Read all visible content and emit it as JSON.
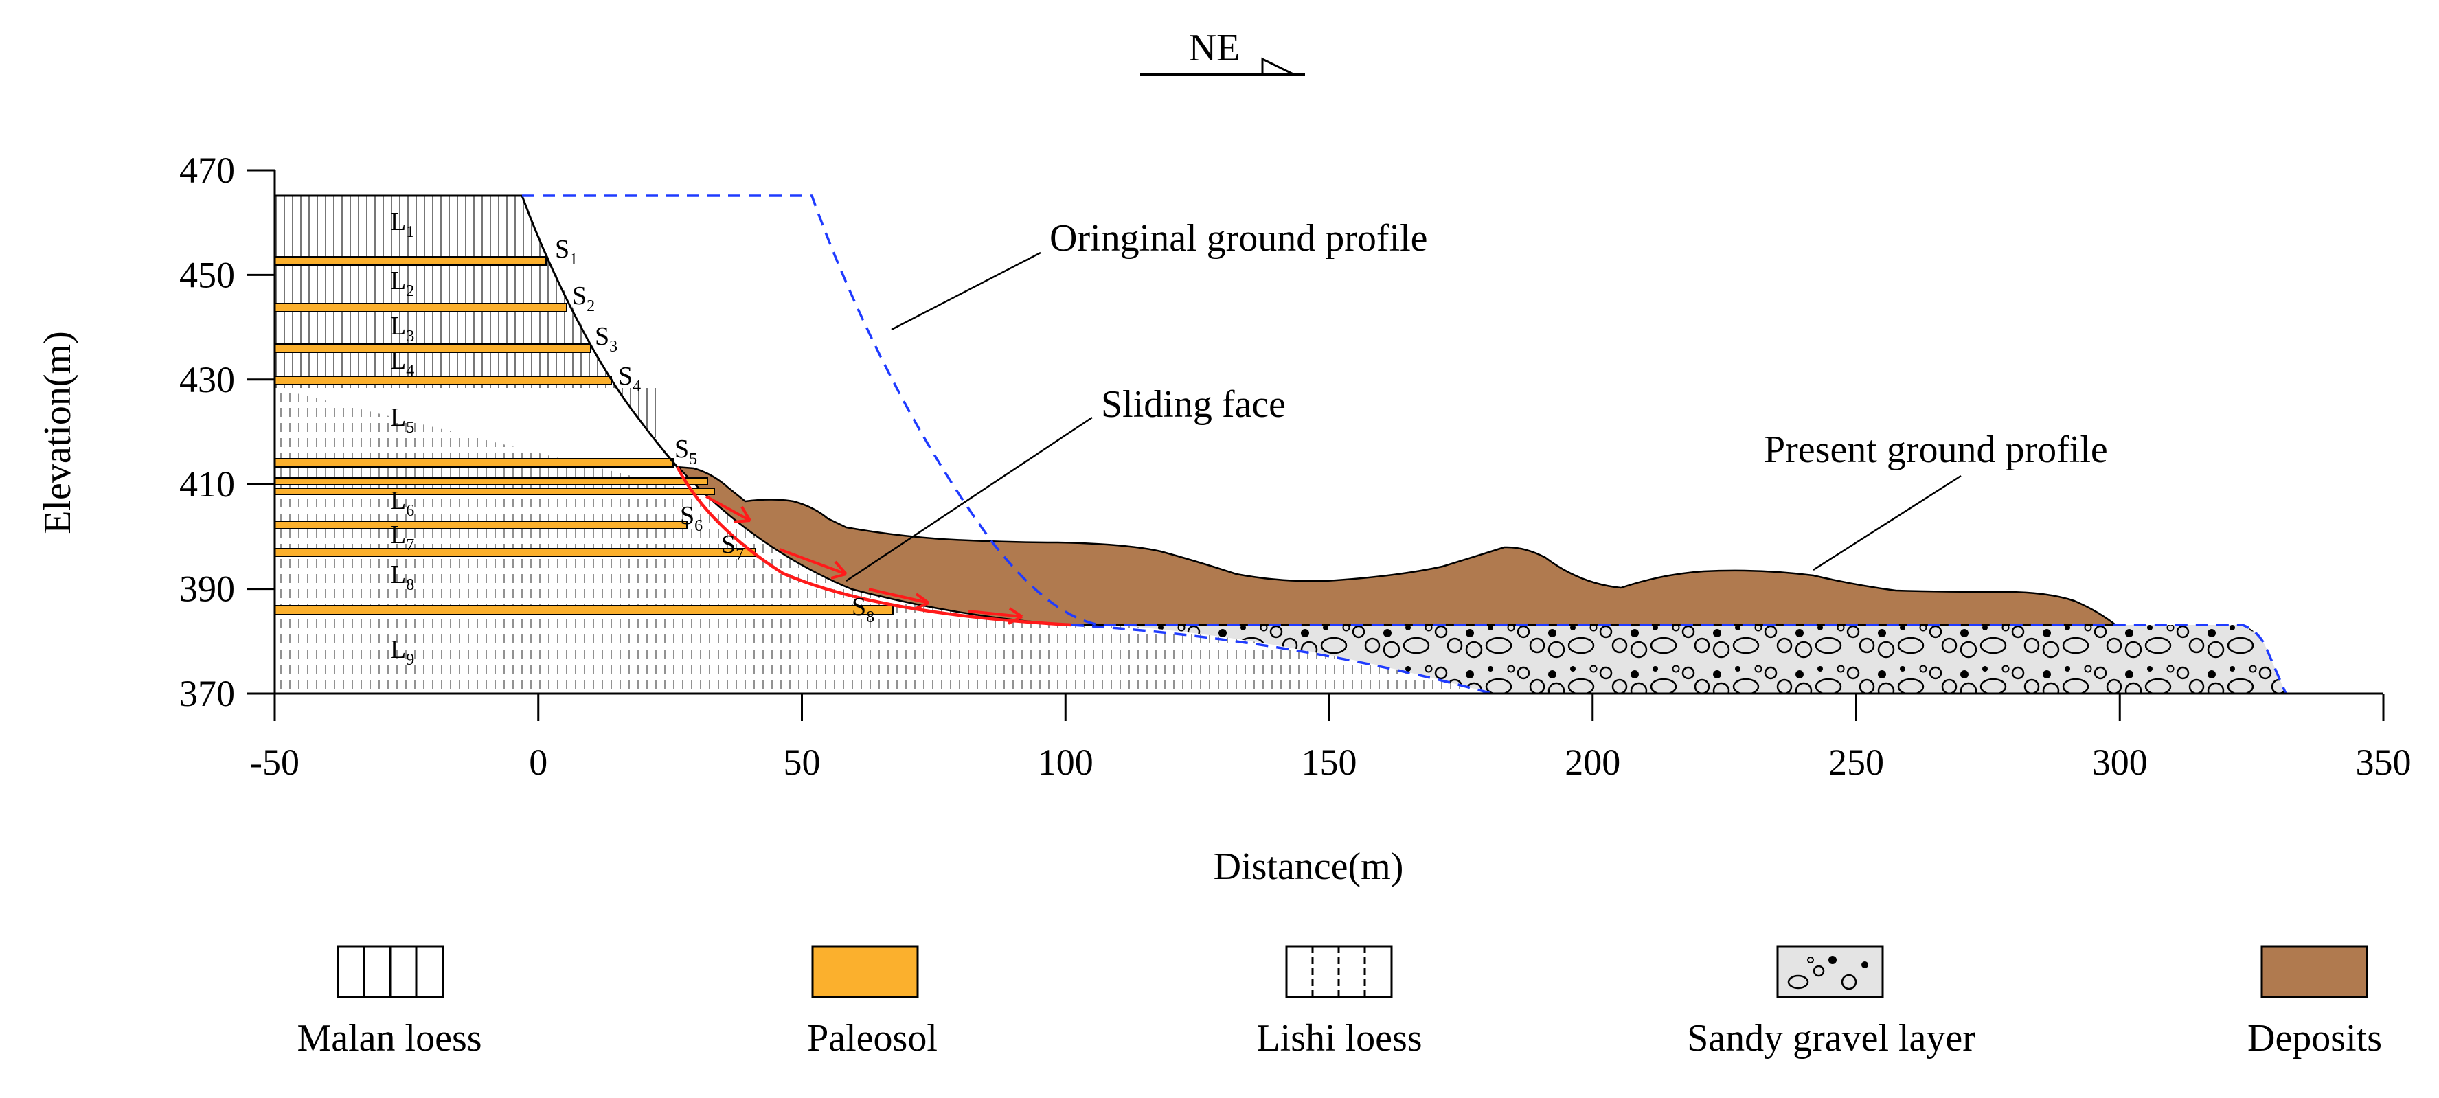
{
  "orientation": {
    "label": "NE"
  },
  "axes": {
    "xlabel": "Distance(m)",
    "ylabel": "Elevation(m)",
    "xticks": [
      "-50",
      "0",
      "50",
      "100",
      "150",
      "200",
      "250",
      "300",
      "350"
    ],
    "yticks": [
      "470",
      "450",
      "430",
      "410",
      "390",
      "370"
    ],
    "xlim": [
      -50,
      350
    ],
    "ylim": [
      370,
      470
    ]
  },
  "annotations": {
    "original": "Oringinal ground profile",
    "sliding": "Sliding face",
    "present": "Present ground profile"
  },
  "layers": [
    {
      "base": "L",
      "sub": "1"
    },
    {
      "base": "L",
      "sub": "2"
    },
    {
      "base": "L",
      "sub": "3"
    },
    {
      "base": "L",
      "sub": "4"
    },
    {
      "base": "L",
      "sub": "5"
    },
    {
      "base": "L",
      "sub": "6"
    },
    {
      "base": "L",
      "sub": "7"
    },
    {
      "base": "L",
      "sub": "8"
    },
    {
      "base": "L",
      "sub": "9"
    }
  ],
  "paleosols": [
    {
      "base": "S",
      "sub": "1"
    },
    {
      "base": "S",
      "sub": "2"
    },
    {
      "base": "S",
      "sub": "3"
    },
    {
      "base": "S",
      "sub": "4"
    },
    {
      "base": "S",
      "sub": "5"
    },
    {
      "base": "S",
      "sub": "6"
    },
    {
      "base": "S",
      "sub": "7"
    },
    {
      "base": "S",
      "sub": "8"
    }
  ],
  "legend": [
    {
      "label": "Malan loess"
    },
    {
      "label": "Paleosol"
    },
    {
      "label": "Lishi loess"
    },
    {
      "label": "Sandy gravel layer"
    },
    {
      "label": "Deposits"
    }
  ],
  "colors": {
    "paleosol": "#FBB02D",
    "deposits": "#B07A4F",
    "gravel": "#E4E4E4",
    "original_profile": "#1F3BFF",
    "sliding": "#FF1A1A"
  }
}
